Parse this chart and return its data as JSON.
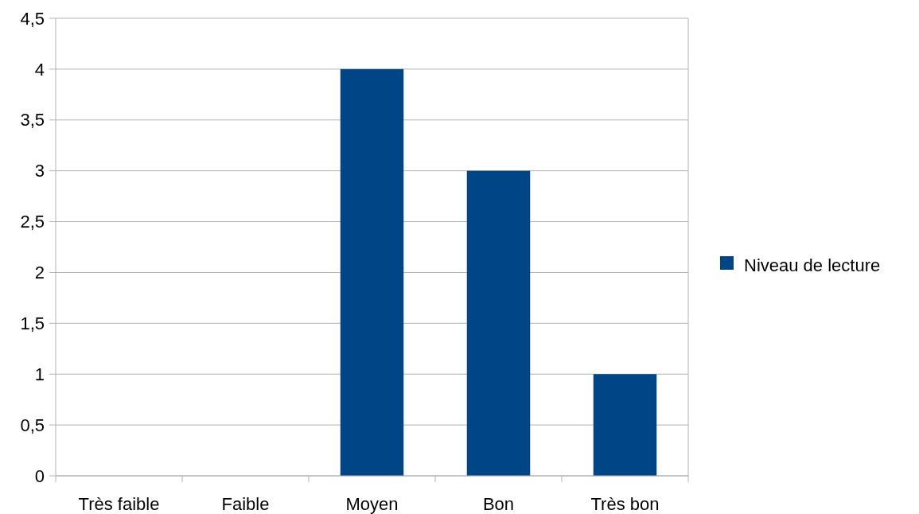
{
  "chart_data": {
    "type": "bar",
    "categories": [
      "Très faible",
      "Faible",
      "Moyen",
      "Bon",
      "Très bon"
    ],
    "series": [
      {
        "name": "Niveau de lecture",
        "color": "#004586",
        "values": [
          0,
          0,
          4,
          3,
          1
        ]
      }
    ],
    "ylim": [
      0,
      4.5
    ],
    "yticks": [
      0,
      {
        "value": 0.5,
        "label": "0,5"
      },
      1,
      {
        "value": 1.5,
        "label": "1,5"
      },
      2,
      {
        "value": 2.5,
        "label": "2,5"
      },
      3,
      {
        "value": 3.5,
        "label": "3,5"
      },
      4,
      {
        "value": 4.5,
        "label": "4,5"
      }
    ],
    "grid": "y",
    "legend": "right"
  }
}
